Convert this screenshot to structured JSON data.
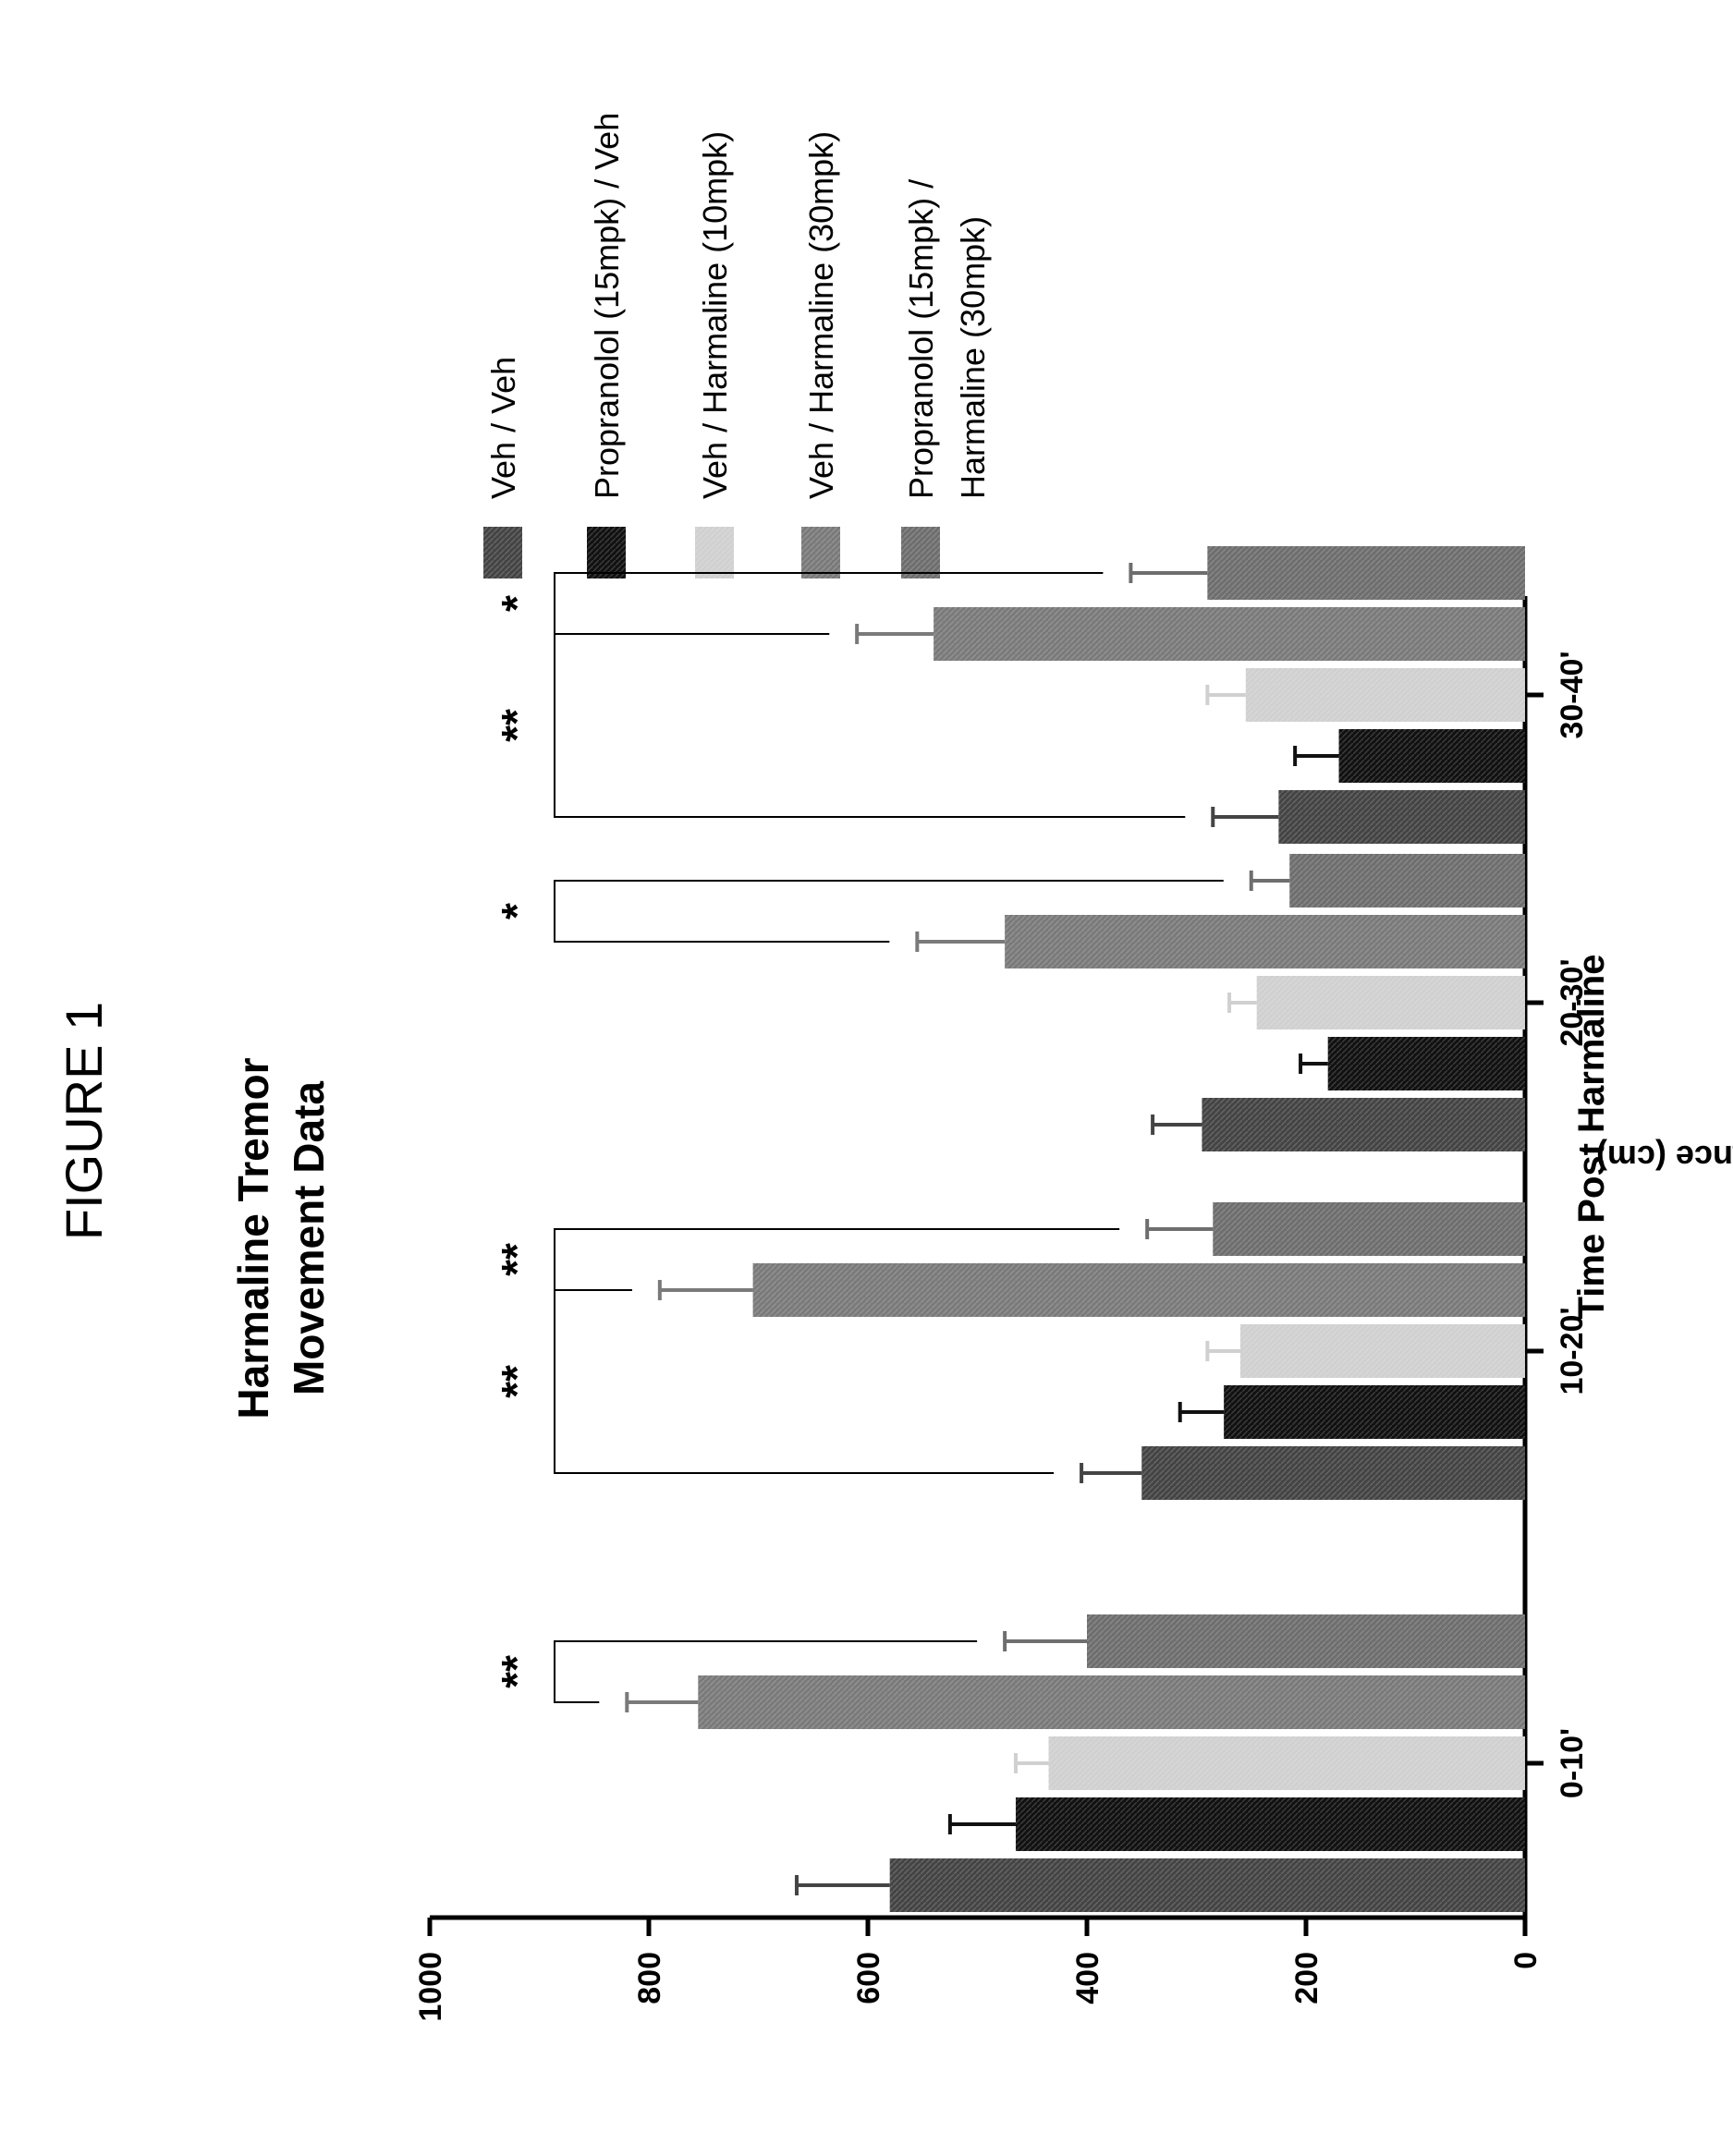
{
  "figure_label": "FIGURE 1",
  "chart_data": {
    "type": "bar",
    "orientation": "horizontal (page rotated 90°)",
    "title": "Harmaline Tremor Movement Data",
    "title_lines": [
      "Harmaline Tremor",
      "Movement Data"
    ],
    "xlabel": "Time Post Harmaline",
    "ylabel": "Distance (cm)",
    "ylim": [
      0,
      1000
    ],
    "yticks": [
      0,
      200,
      400,
      600,
      800,
      1000
    ],
    "grid": false,
    "legend_position": "right (top of rotated page)",
    "categories": [
      "0-10'",
      "10-20'",
      "20-30'",
      "30-40'"
    ],
    "series": [
      {
        "name": "Veh / Veh",
        "color": "#444444",
        "values": [
          580,
          350,
          295,
          225
        ],
        "errors": [
          85,
          55,
          45,
          60
        ]
      },
      {
        "name": "Propranolol (15mpk) / Veh",
        "color": "#111111",
        "values": [
          465,
          275,
          180,
          170
        ],
        "errors": [
          60,
          40,
          25,
          40
        ]
      },
      {
        "name": "Veh / Harmaline (10mpk)",
        "color": "#d0d0d0",
        "values": [
          435,
          260,
          245,
          255
        ],
        "errors": [
          30,
          30,
          25,
          35
        ]
      },
      {
        "name": "Veh / Harmaline (30mpk)",
        "color": "#7a7a7a",
        "values": [
          755,
          705,
          475,
          540
        ],
        "errors": [
          65,
          85,
          80,
          70
        ]
      },
      {
        "name": "Propranolol (15mpk) / Harmaline (30mpk)",
        "color": "#6e6e6e",
        "values": [
          400,
          285,
          215,
          290
        ],
        "errors": [
          75,
          60,
          35,
          70
        ]
      }
    ],
    "legend_lines": [
      [
        "Veh / Veh"
      ],
      [
        "Propranolol (15mpk) / Veh"
      ],
      [
        "Veh / Harmaline (10mpk)"
      ],
      [
        "Veh / Harmaline (30mpk)"
      ],
      [
        "Propranolol (15mpk) /",
        "Harmaline (30mpk)"
      ]
    ],
    "significance": [
      {
        "category": "0-10'",
        "compare": [
          "Veh / Harmaline (30mpk)",
          "Propranolol (15mpk) / Harmaline (30mpk)"
        ],
        "label": "**"
      },
      {
        "category": "10-20'",
        "compare": [
          "Veh / Veh",
          "Veh / Harmaline (30mpk)"
        ],
        "label": "**"
      },
      {
        "category": "10-20'",
        "compare": [
          "Veh / Harmaline (30mpk)",
          "Propranolol (15mpk) / Harmaline (30mpk)"
        ],
        "label": "**"
      },
      {
        "category": "20-30'",
        "compare": [
          "Veh / Harmaline (30mpk)",
          "Propranolol (15mpk) / Harmaline (30mpk)"
        ],
        "label": "*"
      },
      {
        "category": "30-40'",
        "compare": [
          "Veh / Veh",
          "Veh / Harmaline (30mpk)"
        ],
        "label": "**"
      },
      {
        "category": "30-40'",
        "compare": [
          "Veh / Harmaline (30mpk)",
          "Propranolol (15mpk) / Harmaline (30mpk)"
        ],
        "label": "*"
      }
    ]
  }
}
